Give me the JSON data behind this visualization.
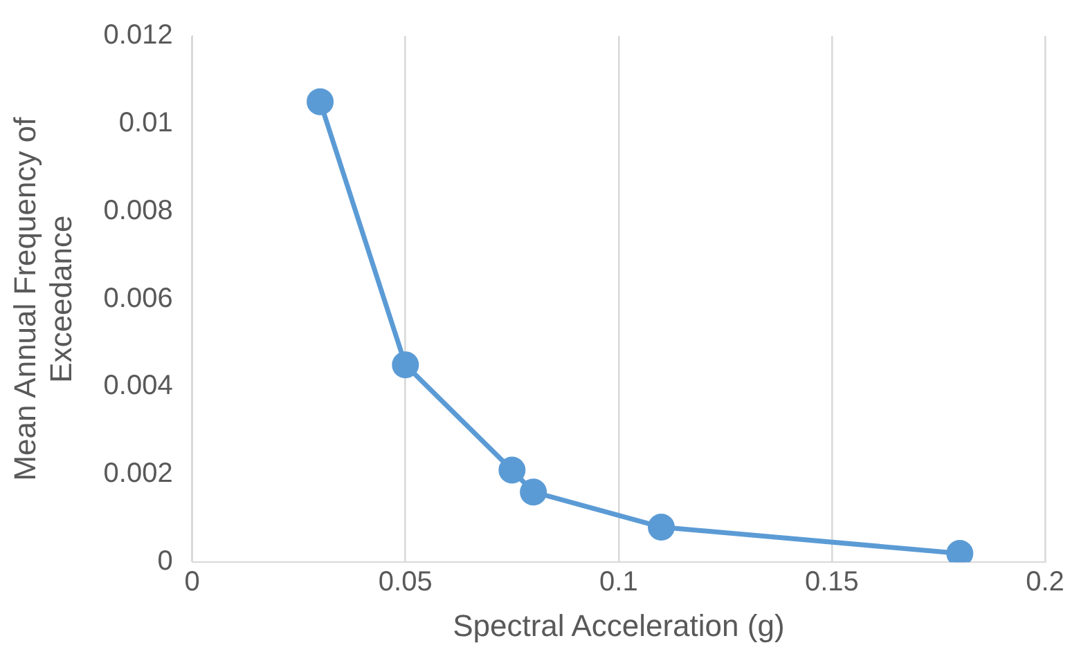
{
  "chart_data": {
    "type": "line",
    "xlabel": "Spectral Acceleration (g)",
    "ylabel": "Mean Annual Frequency of Exceedance",
    "x": [
      0.03,
      0.05,
      0.075,
      0.08,
      0.11,
      0.18
    ],
    "series": [
      {
        "color": "#5b9bd5",
        "values": [
          0.0105,
          0.0045,
          0.0021,
          0.0016,
          0.0008,
          0.0002
        ]
      }
    ],
    "xlim": [
      0,
      0.2
    ],
    "xticks": [
      0,
      0.05,
      0.1,
      0.15,
      0.2
    ],
    "ylim": [
      0,
      0.012
    ],
    "yticks": [
      0,
      0.002,
      0.004,
      0.006,
      0.008,
      0.01,
      0.012
    ],
    "grid": "x",
    "legend": false,
    "marker": "circle",
    "line_style": "solid"
  }
}
